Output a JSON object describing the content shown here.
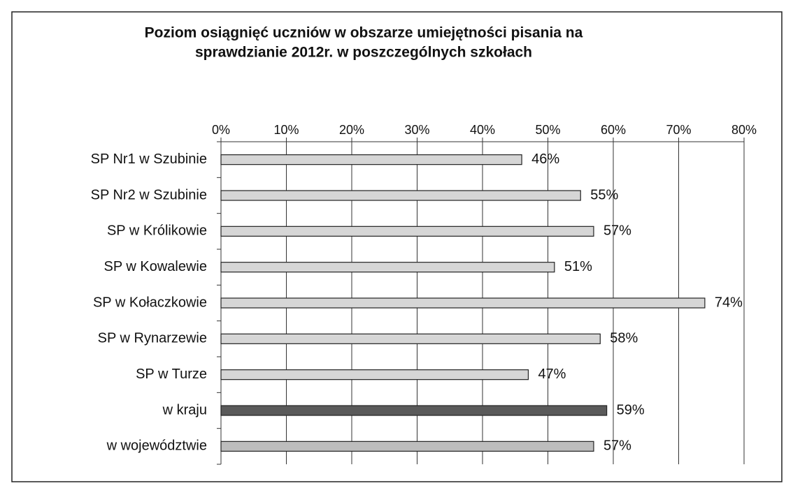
{
  "chart_data": {
    "type": "bar",
    "orientation": "horizontal",
    "title": [
      "Poziom osiągnięć uczniów w obszarze umiejętności pisania na",
      "sprawdzianie 2012r. w poszczególnych szkołach"
    ],
    "categories": [
      "SP Nr1 w Szubinie",
      "SP Nr2 w Szubinie",
      "SP w Królikowie",
      "SP w Kowalewie",
      "SP w Kołaczkowie",
      "SP w Rynarzewie",
      "SP w Turze",
      "w kraju",
      "w województwie"
    ],
    "values": [
      46,
      55,
      57,
      51,
      74,
      58,
      47,
      59,
      57
    ],
    "value_labels": [
      "46%",
      "55%",
      "57%",
      "51%",
      "74%",
      "58%",
      "47%",
      "59%",
      "57%"
    ],
    "colors": [
      "#d6d6d6",
      "#d6d6d6",
      "#d6d6d6",
      "#d6d6d6",
      "#d6d6d6",
      "#d6d6d6",
      "#d6d6d6",
      "#5a5a5a",
      "#bdbdbd"
    ],
    "xlim": [
      0,
      80
    ],
    "xticks": [
      {
        "value": 0,
        "label": "0%"
      },
      {
        "value": 10,
        "label": "10%"
      },
      {
        "value": 20,
        "label": "20%"
      },
      {
        "value": 30,
        "label": "30%"
      },
      {
        "value": 40,
        "label": "40%"
      },
      {
        "value": 50,
        "label": "50%"
      },
      {
        "value": 60,
        "label": "60%"
      },
      {
        "value": 70,
        "label": "70%"
      },
      {
        "value": 80,
        "label": "80%"
      }
    ],
    "grid": true
  }
}
